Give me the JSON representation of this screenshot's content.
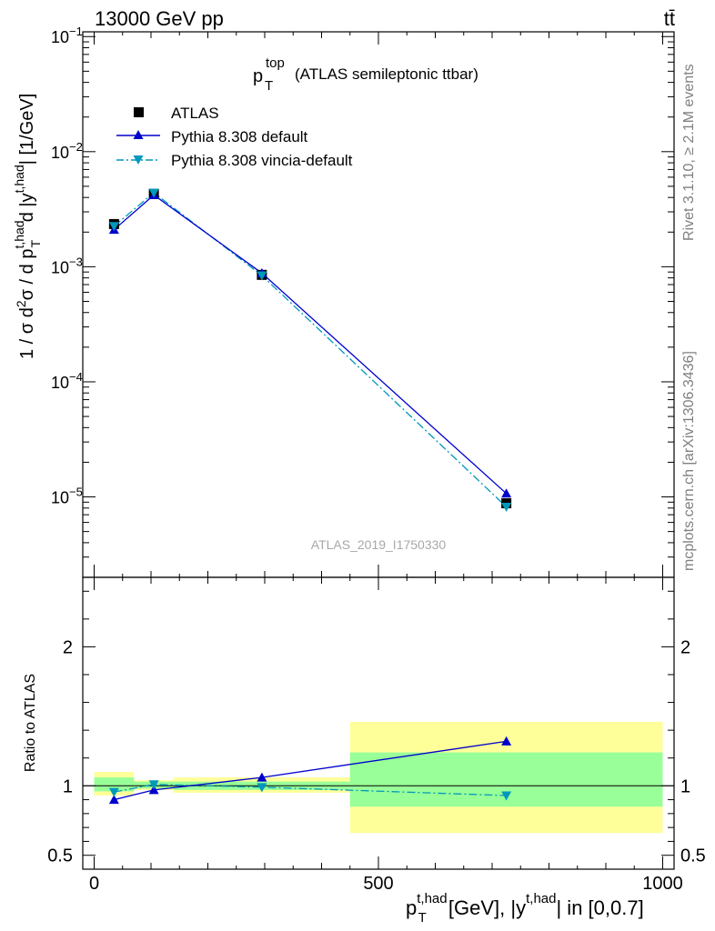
{
  "header": {
    "energy_label": "13000 GeV pp",
    "process_label": "tt̄",
    "analysis_id": "ATLAS_2019_I1750330",
    "side_label_rivet": "Rivet 3.1.10, ≥ 2.1M events",
    "side_label_mcplots": "mcplots.cern.ch [arXiv:1306.3436]"
  },
  "colors": {
    "data": "#000000",
    "pythia_default": "#0000cc",
    "pythia_vincia": "#0099bb",
    "band_inner": "#99ff99",
    "band_outer": "#ffff99"
  },
  "chart_data": [
    {
      "type": "scatter",
      "title": "p_T^top (ATLAS semileptonic ttbar)",
      "title_main": "p",
      "title_sup": "top",
      "title_sub": "T",
      "title_rest": "(ATLAS semileptonic ttbar)",
      "xlabel": "p_T^{t,had} [GeV], |y^{t,had}| in [0,0.7]",
      "ylabel": "1 / σ d²σ / d p_T^{t,had} d |y^{t,had}| [1/GeV]",
      "xlim": [
        -20,
        1020
      ],
      "ylim": [
        2e-06,
        0.11
      ],
      "yscale": "log",
      "y_tick_labels": [
        {
          "value": 1e-05,
          "base": "10",
          "exp": "−5"
        },
        {
          "value": 0.0001,
          "base": "10",
          "exp": "−4"
        },
        {
          "value": 0.001,
          "base": "10",
          "exp": "−3"
        },
        {
          "value": 0.01,
          "base": "10",
          "exp": "−2"
        },
        {
          "value": 0.1,
          "base": "10",
          "exp": "−1"
        }
      ],
      "legend": {
        "placement": "top-left",
        "entries": [
          "ATLAS",
          "Pythia 8.308 default",
          "Pythia 8.308 vincia-default"
        ]
      },
      "series": [
        {
          "name": "ATLAS",
          "x": [
            35,
            105,
            295,
            725
          ],
          "values": [
            0.00235,
            0.0043,
            0.00085,
            8.8e-06
          ]
        },
        {
          "name": "Pythia 8.308 default",
          "x": [
            35,
            105,
            295,
            725
          ],
          "values": [
            0.0021,
            0.0042,
            0.00088,
            1.07e-05
          ]
        },
        {
          "name": "Pythia 8.308 vincia-default",
          "x": [
            35,
            105,
            295,
            725
          ],
          "values": [
            0.00225,
            0.0044,
            0.00084,
            8.2e-06
          ]
        }
      ]
    },
    {
      "type": "scatter",
      "title": "",
      "xlabel": "p_T^{t,had} [GeV], |y^{t,had}| in [0,0.7]",
      "ylabel": "Ratio to ATLAS",
      "xlim": [
        -20,
        1020
      ],
      "ylim": [
        0.4,
        2.5
      ],
      "x_ticks": [
        0,
        500,
        1000
      ],
      "y_ticks": [
        0.5,
        1,
        2
      ],
      "y_tick_labels": [
        "0.5",
        "1",
        "2"
      ],
      "bands": [
        {
          "x_low": 0,
          "x_high": 70,
          "inner": [
            0.96,
            1.06
          ],
          "outer": [
            0.93,
            1.1
          ]
        },
        {
          "x_low": 70,
          "x_high": 140,
          "inner": [
            0.98,
            1.03
          ],
          "outer": [
            0.97,
            1.04
          ]
        },
        {
          "x_low": 140,
          "x_high": 450,
          "inner": [
            0.97,
            1.03
          ],
          "outer": [
            0.95,
            1.06
          ]
        },
        {
          "x_low": 450,
          "x_high": 1000,
          "inner": [
            0.85,
            1.24
          ],
          "outer": [
            0.66,
            1.46
          ]
        }
      ],
      "series": [
        {
          "name": "Pythia 8.308 default",
          "x": [
            35,
            105,
            295,
            725
          ],
          "values": [
            0.9,
            0.97,
            1.06,
            1.32
          ],
          "errors": [
            0,
            0,
            0,
            0.03
          ]
        },
        {
          "name": "Pythia 8.308 vincia-default",
          "x": [
            35,
            105,
            295,
            725
          ],
          "values": [
            0.955,
            1.01,
            0.99,
            0.93
          ],
          "errors": [
            0,
            0,
            0,
            0.03
          ]
        }
      ]
    }
  ]
}
